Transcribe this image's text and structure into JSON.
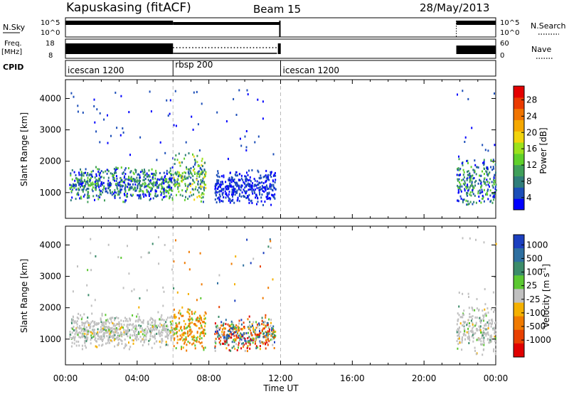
{
  "header": {
    "station": "Kapuskasing (fitACF)",
    "beam": "Beam 15",
    "date": "28/May/2013"
  },
  "strips": {
    "nsky_label": "N.Sky",
    "nsky_top": "10^5",
    "nsky_bottom": "10^0",
    "nsearch_top": "10^5",
    "nsearch_bottom": "10^0",
    "nsearch_label": "N.Search",
    "freq_label_1": "Freq.",
    "freq_label_2": "[MHz]",
    "freq_top": "18",
    "freq_bottom": "8",
    "nave_top": "60",
    "nave_bottom": "0",
    "nave_label": "Nave",
    "cpid_label": "CPID",
    "cpid_segments": [
      {
        "label": "icescan 1200",
        "start_hour": 0,
        "end_hour": 6
      },
      {
        "label": "rbsp 200",
        "start_hour": 6,
        "end_hour": 12
      },
      {
        "label": "icescan 1200",
        "start_hour": 12,
        "end_hour": 24
      }
    ]
  },
  "chart_data": [
    {
      "type": "heatmap",
      "title": "",
      "xlabel": "Time UT",
      "ylabel": "Slant Range [km]",
      "xlim": [
        0,
        24
      ],
      "ylim": [
        180,
        4600
      ],
      "x_ticks": [
        "00:00",
        "04:00",
        "08:00",
        "12:00",
        "16:00",
        "20:00",
        "00:00"
      ],
      "y_ticks": [
        1000,
        2000,
        3000,
        4000
      ],
      "colorbar": {
        "label": "Power [dB]",
        "ticks": [
          "4",
          "8",
          "12",
          "16",
          "20",
          "24",
          "28"
        ],
        "colors": [
          "#0000ff",
          "#1c4eb8",
          "#2f7d7a",
          "#3f9f5a",
          "#5fd02a",
          "#9be11c",
          "#f1d30c",
          "#f5a800",
          "#f07400",
          "#ea3a00",
          "#e40000"
        ]
      },
      "echo_regions": [
        {
          "t_start": 0.2,
          "t_end": 6.0,
          "r_min": 700,
          "r_max": 1900,
          "level": "low-mid"
        },
        {
          "t_start": 6.0,
          "t_end": 7.8,
          "r_min": 600,
          "r_max": 2400,
          "level": "high"
        },
        {
          "t_start": 8.3,
          "t_end": 11.7,
          "r_min": 600,
          "r_max": 1800,
          "level": "low"
        },
        {
          "t_start": 21.8,
          "t_end": 24.0,
          "r_min": 500,
          "r_max": 2200,
          "level": "low-mid"
        }
      ]
    },
    {
      "type": "heatmap",
      "title": "",
      "xlabel": "Time UT",
      "ylabel": "Slant Range [km]",
      "xlim": [
        0,
        24
      ],
      "ylim": [
        180,
        4600
      ],
      "x_ticks": [
        "00:00",
        "04:00",
        "08:00",
        "12:00",
        "16:00",
        "20:00",
        "00:00"
      ],
      "y_ticks": [
        1000,
        2000,
        3000,
        4000
      ],
      "colorbar": {
        "label": "Velocity [m s^-1]",
        "ticks": [
          "1000",
          "500",
          "100",
          "25",
          "-25",
          "-100",
          "-500",
          "-1000"
        ],
        "colors": [
          "#1b3fbf",
          "#2e6fa0",
          "#3c8c6a",
          "#5cc832",
          "#c0c0c0",
          "#f4b000",
          "#f07a00",
          "#e84000",
          "#e00000"
        ]
      },
      "echo_regions": [
        {
          "t_start": 0.2,
          "t_end": 6.0,
          "r_min": 700,
          "r_max": 1900,
          "velocity": "near-zero"
        },
        {
          "t_start": 6.0,
          "t_end": 7.8,
          "r_min": 600,
          "r_max": 2100,
          "velocity": "negative (-100 to -500)"
        },
        {
          "t_start": 8.3,
          "t_end": 11.7,
          "r_min": 600,
          "r_max": 1800,
          "velocity": "mixed"
        },
        {
          "t_start": 21.8,
          "t_end": 24.0,
          "r_min": 500,
          "r_max": 2200,
          "velocity": "near-zero"
        }
      ]
    }
  ]
}
